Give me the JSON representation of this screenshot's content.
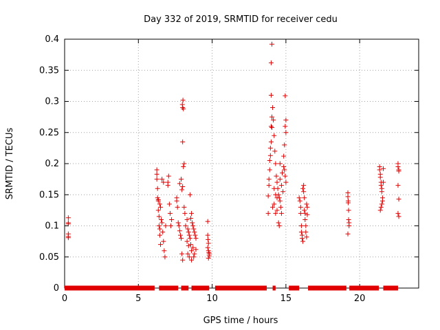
{
  "chart_data": {
    "type": "scatter",
    "title": "Day 332 of 2019, SRMTID for receiver cedu",
    "xlabel": "GPS time / hours",
    "ylabel": "SRMTID / TECUs",
    "xlim": [
      0,
      24
    ],
    "ylim": [
      0,
      0.4
    ],
    "xticks": [
      0,
      5,
      10,
      15,
      20
    ],
    "yticks": [
      0,
      0.05,
      0.1,
      0.15,
      0.2,
      0.25,
      0.3,
      0.35,
      0.4
    ],
    "xtick_labels": [
      "0",
      "5",
      "10",
      "15",
      "20"
    ],
    "ytick_labels": [
      "0",
      "0.05",
      "0.1",
      "0.15",
      "0.2",
      "0.25",
      "0.3",
      "0.35",
      "0.4"
    ],
    "grid": true,
    "marker": "+",
    "color": "#e00000",
    "zero_segments": [
      [
        0,
        6.1
      ],
      [
        6.4,
        7.7
      ],
      [
        7.9,
        8.4
      ],
      [
        8.6,
        9.8
      ],
      [
        10.2,
        13.7
      ],
      [
        14.1,
        14.3
      ],
      [
        15.2,
        15.9
      ],
      [
        16.5,
        19.1
      ],
      [
        19.3,
        21.3
      ],
      [
        21.6,
        22.6
      ]
    ],
    "series": [
      {
        "name": "SRMTID",
        "points": [
          [
            0.25,
            0.113
          ],
          [
            0.25,
            0.105
          ],
          [
            0.25,
            0.103
          ],
          [
            0.25,
            0.087
          ],
          [
            0.25,
            0.083
          ],
          [
            0.25,
            0.081
          ],
          [
            6.25,
            0.19
          ],
          [
            6.25,
            0.183
          ],
          [
            6.25,
            0.175
          ],
          [
            6.3,
            0.16
          ],
          [
            6.3,
            0.145
          ],
          [
            6.35,
            0.14
          ],
          [
            6.35,
            0.125
          ],
          [
            6.4,
            0.115
          ],
          [
            6.4,
            0.1
          ],
          [
            6.45,
            0.095
          ],
          [
            6.45,
            0.085
          ],
          [
            6.5,
            0.13
          ],
          [
            6.5,
            0.07
          ],
          [
            6.55,
            0.11
          ],
          [
            6.6,
            0.105
          ],
          [
            6.65,
            0.09
          ],
          [
            6.7,
            0.075
          ],
          [
            6.75,
            0.06
          ],
          [
            6.8,
            0.05
          ],
          [
            6.85,
            0.1
          ],
          [
            6.7,
            0.17
          ],
          [
            6.6,
            0.175
          ],
          [
            6.35,
            0.142
          ],
          [
            6.45,
            0.135
          ],
          [
            7.0,
            0.17
          ],
          [
            7.0,
            0.165
          ],
          [
            7.05,
            0.18
          ],
          [
            7.1,
            0.135
          ],
          [
            7.15,
            0.12
          ],
          [
            7.2,
            0.1
          ],
          [
            7.25,
            0.11
          ],
          [
            7.6,
            0.145
          ],
          [
            7.6,
            0.14
          ],
          [
            7.65,
            0.13
          ],
          [
            7.7,
            0.105
          ],
          [
            7.75,
            0.1
          ],
          [
            7.8,
            0.092
          ],
          [
            7.85,
            0.085
          ],
          [
            7.9,
            0.08
          ],
          [
            7.95,
            0.055
          ],
          [
            8.0,
            0.045
          ],
          [
            7.8,
            0.168
          ],
          [
            7.9,
            0.175
          ],
          [
            8.0,
            0.163
          ],
          [
            7.95,
            0.158
          ],
          [
            8.05,
            0.195
          ],
          [
            8.1,
            0.2
          ],
          [
            8.0,
            0.235
          ],
          [
            8.0,
            0.29
          ],
          [
            7.98,
            0.295
          ],
          [
            8.02,
            0.302
          ],
          [
            8.05,
            0.288
          ],
          [
            8.1,
            0.13
          ],
          [
            8.15,
            0.12
          ],
          [
            8.2,
            0.1
          ],
          [
            8.3,
            0.11
          ],
          [
            8.35,
            0.095
          ],
          [
            8.4,
            0.09
          ],
          [
            8.45,
            0.085
          ],
          [
            8.5,
            0.08
          ],
          [
            8.55,
            0.07
          ],
          [
            8.6,
            0.06
          ],
          [
            8.3,
            0.075
          ],
          [
            8.4,
            0.068
          ],
          [
            8.5,
            0.15
          ],
          [
            8.6,
            0.12
          ],
          [
            8.65,
            0.105
          ],
          [
            8.7,
            0.1
          ],
          [
            8.75,
            0.095
          ],
          [
            8.8,
            0.09
          ],
          [
            8.85,
            0.085
          ],
          [
            8.9,
            0.08
          ],
          [
            8.7,
            0.065
          ],
          [
            8.8,
            0.055
          ],
          [
            8.75,
            0.05
          ],
          [
            8.9,
            0.062
          ],
          [
            8.6,
            0.045
          ],
          [
            8.45,
            0.05
          ],
          [
            8.35,
            0.055
          ],
          [
            8.55,
            0.112
          ],
          [
            9.7,
            0.107
          ],
          [
            9.7,
            0.085
          ],
          [
            9.72,
            0.078
          ],
          [
            9.75,
            0.072
          ],
          [
            9.75,
            0.06
          ],
          [
            9.78,
            0.057
          ],
          [
            9.8,
            0.055
          ],
          [
            9.8,
            0.052
          ],
          [
            9.75,
            0.048
          ],
          [
            9.7,
            0.065
          ],
          [
            13.8,
            0.148
          ],
          [
            13.8,
            0.12
          ],
          [
            13.85,
            0.165
          ],
          [
            13.85,
            0.175
          ],
          [
            13.9,
            0.19
          ],
          [
            13.9,
            0.205
          ],
          [
            13.95,
            0.213
          ],
          [
            13.95,
            0.225
          ],
          [
            14.0,
            0.235
          ],
          [
            14.0,
            0.26
          ],
          [
            14.05,
            0.275
          ],
          [
            14.05,
            0.258
          ],
          [
            14.0,
            0.31
          ],
          [
            14.0,
            0.362
          ],
          [
            14.05,
            0.392
          ],
          [
            14.1,
            0.29
          ],
          [
            14.15,
            0.27
          ],
          [
            14.2,
            0.245
          ],
          [
            14.25,
            0.22
          ],
          [
            14.3,
            0.2
          ],
          [
            14.35,
            0.18
          ],
          [
            14.4,
            0.17
          ],
          [
            14.45,
            0.16
          ],
          [
            14.5,
            0.15
          ],
          [
            14.55,
            0.145
          ],
          [
            14.6,
            0.14
          ],
          [
            14.65,
            0.13
          ],
          [
            14.7,
            0.12
          ],
          [
            14.5,
            0.105
          ],
          [
            14.55,
            0.1
          ],
          [
            14.6,
            0.175
          ],
          [
            14.7,
            0.165
          ],
          [
            14.8,
            0.155
          ],
          [
            14.85,
            0.195
          ],
          [
            14.9,
            0.19
          ],
          [
            14.95,
            0.18
          ],
          [
            15.0,
            0.17
          ],
          [
            14.85,
            0.212
          ],
          [
            14.9,
            0.23
          ],
          [
            14.95,
            0.26
          ],
          [
            15.0,
            0.27
          ],
          [
            14.95,
            0.309
          ],
          [
            15.0,
            0.25
          ],
          [
            14.3,
            0.15
          ],
          [
            14.4,
            0.145
          ],
          [
            14.2,
            0.135
          ],
          [
            14.1,
            0.13
          ],
          [
            14.3,
            0.12
          ],
          [
            14.4,
            0.125
          ],
          [
            14.2,
            0.16
          ],
          [
            14.6,
            0.2
          ],
          [
            14.75,
            0.185
          ],
          [
            15.9,
            0.145
          ],
          [
            15.95,
            0.14
          ],
          [
            16.0,
            0.13
          ],
          [
            16.0,
            0.12
          ],
          [
            16.05,
            0.1
          ],
          [
            16.05,
            0.09
          ],
          [
            16.1,
            0.085
          ],
          [
            16.1,
            0.08
          ],
          [
            16.15,
            0.075
          ],
          [
            16.15,
            0.16
          ],
          [
            16.2,
            0.165
          ],
          [
            16.2,
            0.155
          ],
          [
            16.25,
            0.145
          ],
          [
            16.25,
            0.125
          ],
          [
            16.3,
            0.12
          ],
          [
            16.3,
            0.11
          ],
          [
            16.35,
            0.1
          ],
          [
            16.35,
            0.09
          ],
          [
            16.4,
            0.082
          ],
          [
            16.4,
            0.135
          ],
          [
            16.45,
            0.13
          ],
          [
            16.45,
            0.118
          ],
          [
            19.2,
            0.153
          ],
          [
            19.2,
            0.147
          ],
          [
            19.22,
            0.14
          ],
          [
            19.22,
            0.137
          ],
          [
            19.25,
            0.125
          ],
          [
            19.25,
            0.11
          ],
          [
            19.28,
            0.105
          ],
          [
            19.28,
            0.1
          ],
          [
            19.2,
            0.087
          ],
          [
            21.35,
            0.195
          ],
          [
            21.35,
            0.19
          ],
          [
            21.4,
            0.183
          ],
          [
            21.4,
            0.178
          ],
          [
            21.45,
            0.17
          ],
          [
            21.45,
            0.165
          ],
          [
            21.5,
            0.16
          ],
          [
            21.5,
            0.155
          ],
          [
            21.55,
            0.145
          ],
          [
            21.55,
            0.14
          ],
          [
            21.5,
            0.135
          ],
          [
            21.45,
            0.13
          ],
          [
            21.4,
            0.125
          ],
          [
            21.6,
            0.192
          ],
          [
            21.6,
            0.17
          ],
          [
            22.6,
            0.2
          ],
          [
            22.6,
            0.195
          ],
          [
            22.65,
            0.19
          ],
          [
            22.65,
            0.188
          ],
          [
            22.6,
            0.165
          ],
          [
            22.65,
            0.143
          ],
          [
            22.6,
            0.12
          ],
          [
            22.65,
            0.115
          ]
        ]
      }
    ]
  }
}
